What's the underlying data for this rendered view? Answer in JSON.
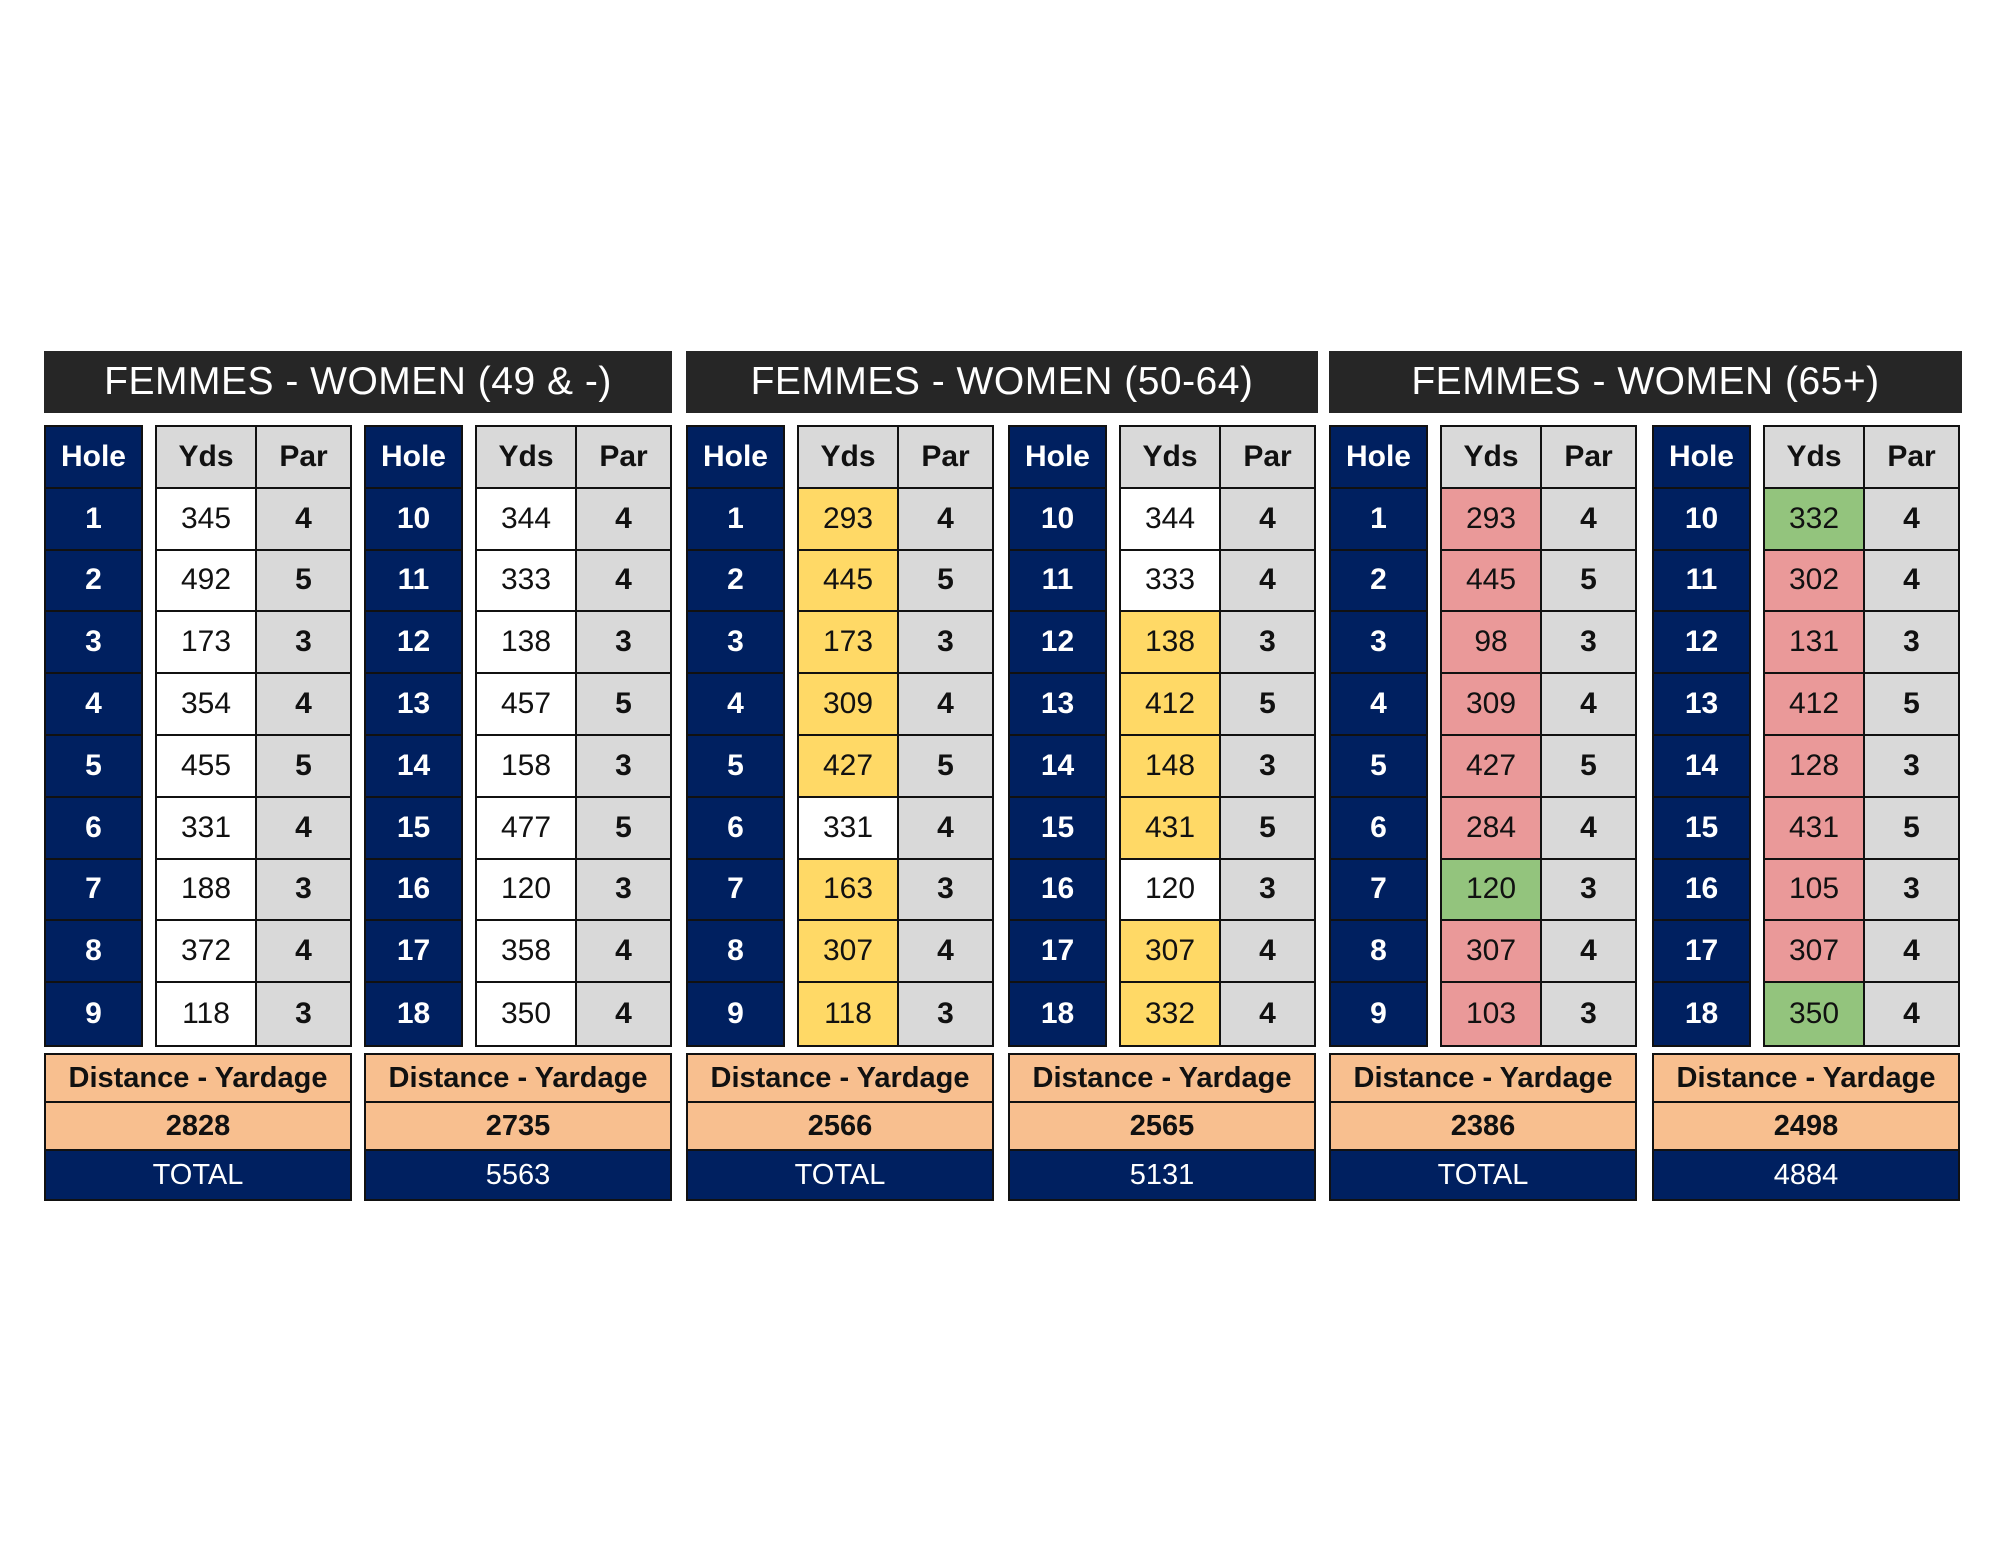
{
  "colors": {
    "navy": "#002060",
    "gray": "#d9d9d9",
    "white": "#ffffff",
    "yellow": "#ffd966",
    "pink": "#ea9999",
    "green": "#93c47d",
    "orange": "#f8bf8f",
    "title": "#262626"
  },
  "headers": {
    "hole": "Hole",
    "yds": "Yds",
    "par": "Par",
    "distance": "Distance - Yardage"
  },
  "groups": [
    {
      "title": "FEMMES - WOMEN (49 & -)",
      "total_label": "TOTAL",
      "total": "5563",
      "blocks": [
        {
          "holes": [
            "1",
            "2",
            "3",
            "4",
            "5",
            "6",
            "7",
            "8",
            "9"
          ],
          "yds": [
            "345",
            "492",
            "173",
            "354",
            "455",
            "331",
            "188",
            "372",
            "118"
          ],
          "par": [
            "4",
            "5",
            "3",
            "4",
            "5",
            "4",
            "3",
            "4",
            "3"
          ],
          "fill": [
            "white",
            "white",
            "white",
            "white",
            "white",
            "white",
            "white",
            "white",
            "white"
          ],
          "distance": "2828"
        },
        {
          "holes": [
            "10",
            "11",
            "12",
            "13",
            "14",
            "15",
            "16",
            "17",
            "18"
          ],
          "yds": [
            "344",
            "333",
            "138",
            "457",
            "158",
            "477",
            "120",
            "358",
            "350"
          ],
          "par": [
            "4",
            "4",
            "3",
            "5",
            "3",
            "5",
            "3",
            "4",
            "4"
          ],
          "fill": [
            "white",
            "white",
            "white",
            "white",
            "white",
            "white",
            "white",
            "white",
            "white"
          ],
          "distance": "2735"
        }
      ]
    },
    {
      "title": "FEMMES - WOMEN (50-64)",
      "total_label": "TOTAL",
      "total": "5131",
      "blocks": [
        {
          "holes": [
            "1",
            "2",
            "3",
            "4",
            "5",
            "6",
            "7",
            "8",
            "9"
          ],
          "yds": [
            "293",
            "445",
            "173",
            "309",
            "427",
            "331",
            "163",
            "307",
            "118"
          ],
          "par": [
            "4",
            "5",
            "3",
            "4",
            "5",
            "4",
            "3",
            "4",
            "3"
          ],
          "fill": [
            "yellow",
            "yellow",
            "yellow",
            "yellow",
            "yellow",
            "white",
            "yellow",
            "yellow",
            "yellow"
          ],
          "distance": "2566"
        },
        {
          "holes": [
            "10",
            "11",
            "12",
            "13",
            "14",
            "15",
            "16",
            "17",
            "18"
          ],
          "yds": [
            "344",
            "333",
            "138",
            "412",
            "148",
            "431",
            "120",
            "307",
            "332"
          ],
          "par": [
            "4",
            "4",
            "3",
            "5",
            "3",
            "5",
            "3",
            "4",
            "4"
          ],
          "fill": [
            "white",
            "white",
            "yellow",
            "yellow",
            "yellow",
            "yellow",
            "white",
            "yellow",
            "yellow"
          ],
          "distance": "2565"
        }
      ]
    },
    {
      "title": "FEMMES - WOMEN (65+)",
      "total_label": "TOTAL",
      "total": "4884",
      "blocks": [
        {
          "holes": [
            "1",
            "2",
            "3",
            "4",
            "5",
            "6",
            "7",
            "8",
            "9"
          ],
          "yds": [
            "293",
            "445",
            "98",
            "309",
            "427",
            "284",
            "120",
            "307",
            "103"
          ],
          "par": [
            "4",
            "5",
            "3",
            "4",
            "5",
            "4",
            "3",
            "4",
            "3"
          ],
          "fill": [
            "pink",
            "pink",
            "pink",
            "pink",
            "pink",
            "pink",
            "green",
            "pink",
            "pink"
          ],
          "distance": "2386"
        },
        {
          "holes": [
            "10",
            "11",
            "12",
            "13",
            "14",
            "15",
            "16",
            "17",
            "18"
          ],
          "yds": [
            "332",
            "302",
            "131",
            "412",
            "128",
            "431",
            "105",
            "307",
            "350"
          ],
          "par": [
            "4",
            "4",
            "3",
            "5",
            "3",
            "5",
            "3",
            "4",
            "4"
          ],
          "fill": [
            "green",
            "pink",
            "pink",
            "pink",
            "pink",
            "pink",
            "pink",
            "pink",
            "green"
          ],
          "distance": "2498"
        }
      ]
    }
  ]
}
